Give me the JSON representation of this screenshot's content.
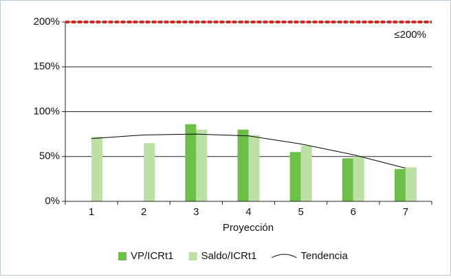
{
  "chart_data": {
    "type": "bar",
    "categories": [
      "1",
      "2",
      "3",
      "4",
      "5",
      "6",
      "7"
    ],
    "x_label": "Proyección",
    "series": [
      {
        "name": "VP/ICRt1",
        "color": "#6cbf47",
        "values": [
          null,
          null,
          86,
          80,
          55,
          48,
          36
        ]
      },
      {
        "name": "Saldo/ICRt1",
        "color": "#bde0a5",
        "values": [
          72,
          65,
          80,
          74,
          62,
          50,
          38
        ]
      },
      {
        "name": "Tendencia",
        "type": "line",
        "color": "#000000",
        "values": [
          70,
          74,
          75,
          73,
          64,
          52,
          37
        ]
      }
    ],
    "threshold": {
      "value": 200,
      "label": "≤200%",
      "color": "#e0201c"
    },
    "ylim": [
      0,
      200
    ],
    "yticks": [
      {
        "value": 0,
        "label": "0%"
      },
      {
        "value": 50,
        "label": "50%"
      },
      {
        "value": 100,
        "label": "100%"
      },
      {
        "value": 150,
        "label": "150%"
      },
      {
        "value": 200,
        "label": "200%"
      }
    ],
    "grid": true,
    "legend": "bottom"
  }
}
